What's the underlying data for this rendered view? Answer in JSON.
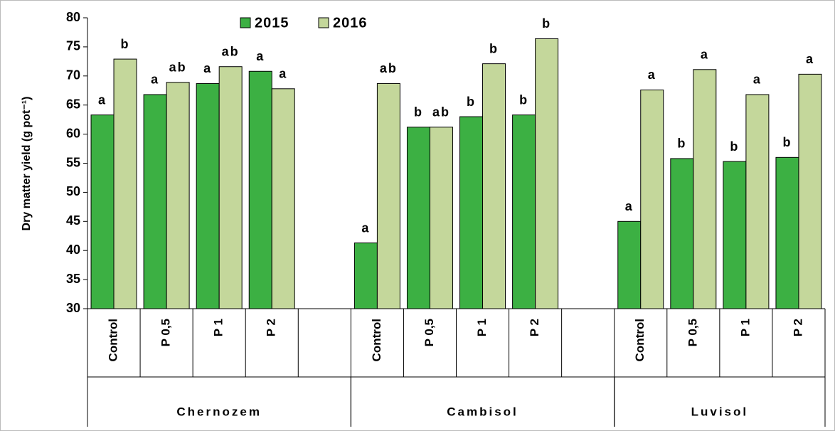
{
  "chart_data": {
    "type": "bar",
    "y_label": "Dry matter yield (g pot⁻¹)",
    "categories": [
      "Control",
      "P 0,5",
      "P 1",
      "P 2",
      null,
      "Control",
      "P 0,5",
      "P 1",
      "P 2",
      null,
      "Control",
      "P 0,5",
      "P 1",
      "P 2"
    ],
    "groups": [
      {
        "name": "Chernozem",
        "size": 5
      },
      {
        "name": "Cambisol",
        "size": 5
      },
      {
        "name": "Luvisol",
        "size": 4
      }
    ],
    "series": [
      {
        "name": "2015",
        "color": "#3cb043",
        "values": [
          63.3,
          66.8,
          68.7,
          70.8,
          null,
          41.3,
          61.2,
          63.0,
          63.3,
          null,
          45.0,
          55.8,
          55.3,
          56.0
        ],
        "annotations": [
          "a",
          "a",
          "a",
          "a",
          null,
          "a",
          "b",
          "b",
          "b",
          null,
          "a",
          "b",
          "b",
          "b"
        ]
      },
      {
        "name": "2016",
        "color": "#c4d79b",
        "values": [
          72.9,
          68.9,
          71.6,
          67.8,
          null,
          68.7,
          61.2,
          72.1,
          76.4,
          null,
          67.6,
          71.1,
          66.8,
          70.3
        ],
        "annotations": [
          "b",
          "ab",
          "ab",
          "a",
          null,
          "ab",
          "ab",
          "b",
          "b",
          null,
          "a",
          "a",
          "a",
          "a"
        ]
      }
    ],
    "ylim": [
      30,
      80
    ],
    "yticks": [
      30,
      35,
      40,
      45,
      50,
      55,
      60,
      65,
      70,
      75,
      80
    ],
    "legend": "top"
  }
}
